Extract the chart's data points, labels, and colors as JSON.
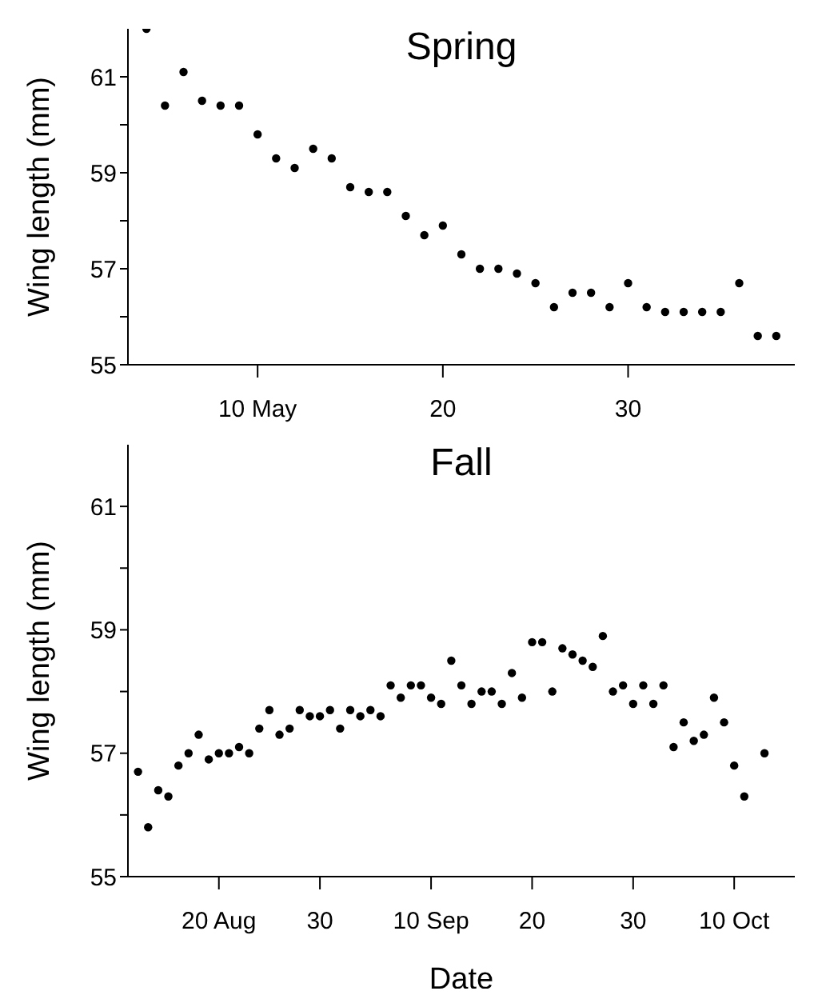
{
  "chart_data": [
    {
      "type": "scatter",
      "title": "Spring",
      "ylabel": "Wing length (mm)",
      "marker": "circle",
      "x": [
        "--05-04",
        "--05-05",
        "--05-06",
        "--05-07",
        "--05-08",
        "--05-09",
        "--05-10",
        "--05-11",
        "--05-12",
        "--05-13",
        "--05-14",
        "--05-15",
        "--05-16",
        "--05-17",
        "--05-18",
        "--05-19",
        "--05-20",
        "--05-21",
        "--05-22",
        "--05-23",
        "--05-24",
        "--05-25",
        "--05-26",
        "--05-27",
        "--05-28",
        "--05-29",
        "--05-30",
        "--05-31",
        "--06-01",
        "--06-02",
        "--06-03",
        "--06-04",
        "--06-05",
        "--06-06",
        "--06-07"
      ],
      "series": [
        {
          "color": "#000000",
          "values": [
            62.0,
            60.4,
            61.1,
            60.5,
            60.4,
            60.4,
            59.8,
            59.3,
            59.1,
            59.5,
            59.3,
            58.7,
            58.6,
            58.6,
            58.1,
            57.7,
            57.9,
            57.3,
            57.0,
            57.0,
            56.9,
            56.7,
            56.2,
            56.5,
            56.5,
            56.2,
            56.7,
            56.2,
            56.1,
            56.1,
            56.1,
            56.1,
            56.7,
            55.6,
            55.6
          ]
        }
      ],
      "xlim": [
        "--05-03",
        "--06-08"
      ],
      "xticks": [
        {
          "value": "--05-10",
          "label": "10 May"
        },
        {
          "value": "--05-20",
          "label": "20"
        },
        {
          "value": "--05-30",
          "label": "30"
        }
      ],
      "ylim": [
        55,
        62
      ],
      "yticks": [
        55,
        {
          "value": 56,
          "label": null
        },
        57,
        {
          "value": 58,
          "label": null
        },
        59,
        {
          "value": 60,
          "label": null
        },
        61
      ]
    },
    {
      "type": "scatter",
      "title": "Fall",
      "xlabel": "Date",
      "ylabel": "Wing length (mm)",
      "marker": "circle",
      "x": [
        "--08-12",
        "--08-13",
        "--08-14",
        "--08-15",
        "--08-16",
        "--08-17",
        "--08-18",
        "--08-19",
        "--08-20",
        "--08-21",
        "--08-22",
        "--08-23",
        "--08-24",
        "--08-25",
        "--08-26",
        "--08-27",
        "--08-28",
        "--08-29",
        "--08-30",
        "--08-31",
        "--09-01",
        "--09-02",
        "--09-03",
        "--09-04",
        "--09-05",
        "--09-06",
        "--09-07",
        "--09-08",
        "--09-09",
        "--09-10",
        "--09-11",
        "--09-12",
        "--09-13",
        "--09-14",
        "--09-15",
        "--09-16",
        "--09-17",
        "--09-18",
        "--09-19",
        "--09-20",
        "--09-21",
        "--09-22",
        "--09-23",
        "--09-24",
        "--09-25",
        "--09-26",
        "--09-27",
        "--09-28",
        "--09-29",
        "--09-30",
        "--10-01",
        "--10-02",
        "--10-03",
        "--10-04",
        "--10-05",
        "--10-06",
        "--10-07",
        "--10-08",
        "--10-09",
        "--10-10",
        "--10-11",
        "--10-13"
      ],
      "series": [
        {
          "color": "#000000",
          "values": [
            56.7,
            55.8,
            56.4,
            56.3,
            56.8,
            57.0,
            57.3,
            56.9,
            57.0,
            57.0,
            57.1,
            57.0,
            57.4,
            57.7,
            57.3,
            57.4,
            57.7,
            57.6,
            57.6,
            57.7,
            57.4,
            57.7,
            57.6,
            57.7,
            57.6,
            58.1,
            57.9,
            58.1,
            58.1,
            57.9,
            57.8,
            58.5,
            58.1,
            57.8,
            58.0,
            58.0,
            57.8,
            58.3,
            57.9,
            58.8,
            58.8,
            58.0,
            58.7,
            58.6,
            58.5,
            58.4,
            58.9,
            58.0,
            58.1,
            57.8,
            58.1,
            57.8,
            58.1,
            57.1,
            57.5,
            57.2,
            57.3,
            57.9,
            57.5,
            56.8,
            56.3,
            57.0
          ]
        }
      ],
      "xlim": [
        "--08-11",
        "--10-16"
      ],
      "xticks": [
        {
          "value": "--08-20",
          "label": "20 Aug"
        },
        {
          "value": "--08-30",
          "label": "30"
        },
        {
          "value": "--09-10",
          "label": "10 Sep"
        },
        {
          "value": "--09-20",
          "label": "20"
        },
        {
          "value": "--09-30",
          "label": "30"
        },
        {
          "value": "--10-10",
          "label": "10 Oct"
        }
      ],
      "ylim": [
        55,
        62
      ],
      "yticks": [
        55,
        {
          "value": 56,
          "label": null
        },
        57,
        {
          "value": 58,
          "label": null
        },
        59,
        {
          "value": 60,
          "label": null
        },
        61
      ]
    }
  ]
}
